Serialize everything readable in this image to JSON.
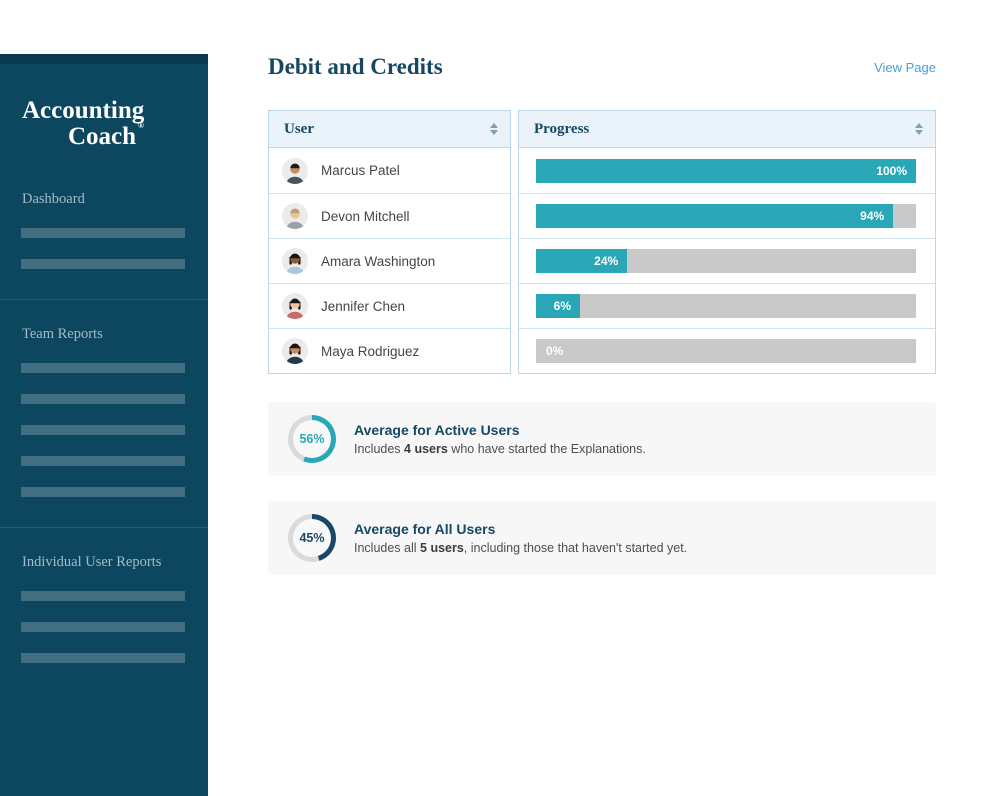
{
  "sidebar": {
    "logo": {
      "line1": "Accounting",
      "line2": "Coach",
      "trademark": "®"
    },
    "sections": [
      {
        "label": "Dashboard",
        "placeholder_count": 2
      },
      {
        "label": "Team Reports",
        "placeholder_count": 5
      },
      {
        "label": "Individual User Reports",
        "placeholder_count": 3
      }
    ]
  },
  "header": {
    "title": "Debit and Credits",
    "link": "View Page"
  },
  "table": {
    "columns": [
      {
        "label": "User"
      },
      {
        "label": "Progress"
      }
    ],
    "rows": [
      {
        "name": "Marcus Patel",
        "progress": 100,
        "progress_label": "100%",
        "avatar": {
          "skin": "#c9895f",
          "hair": "#26190f",
          "shirt": "#48535a",
          "hair_style": "short"
        }
      },
      {
        "name": "Devon Mitchell",
        "progress": 94,
        "progress_label": "94%",
        "avatar": {
          "skin": "#e9c29e",
          "hair": "#c2a06b",
          "shirt": "#99a1a6",
          "hair_style": "short"
        }
      },
      {
        "name": "Amara Washington",
        "progress": 24,
        "progress_label": "24%",
        "avatar": {
          "skin": "#8d5a3b",
          "hair": "#1d140e",
          "shirt": "#a9c7de",
          "hair_style": "long"
        }
      },
      {
        "name": "Jennifer Chen",
        "progress": 6,
        "progress_label": "6%",
        "avatar": {
          "skin": "#eec6a3",
          "hair": "#221812",
          "shirt": "#c76b6b",
          "hair_style": "long"
        }
      },
      {
        "name": "Maya Rodriguez",
        "progress": 0,
        "progress_label": "0%",
        "avatar": {
          "skin": "#c9895f",
          "hair": "#1d140e",
          "shirt": "#23384d",
          "hair_style": "long"
        }
      }
    ]
  },
  "cards": [
    {
      "percent": 56,
      "percent_label": "56%",
      "accent": "#2aa7b7",
      "title": "Average for Active Users",
      "description": [
        {
          "t": "Includes ",
          "b": false
        },
        {
          "t": "4 users",
          "b": true
        },
        {
          "t": " who have started the Explanations.",
          "b": false
        }
      ]
    },
    {
      "percent": 45,
      "percent_label": "45%",
      "accent": "#1b4965",
      "title": "Average for All Users",
      "description": [
        {
          "t": "Includes all ",
          "b": false
        },
        {
          "t": "5 users",
          "b": true
        },
        {
          "t": ", including those that haven't started yet.",
          "b": false
        }
      ]
    }
  ],
  "colors": {
    "sidebar_bg": "#0d465f",
    "sidebar_top_strip": "#09394e",
    "teal": "#2aa7b7",
    "navy": "#1b4965",
    "heading": "#164863",
    "link_blue": "#4a9fd6",
    "bar_track": "#c9c9c9",
    "table_border": "#b9d8e8",
    "row_border": "#cfe4f0",
    "table_header_bg": "#e9f3f9",
    "card_bg": "#f7f7f7",
    "donut_track": "#dadada"
  }
}
